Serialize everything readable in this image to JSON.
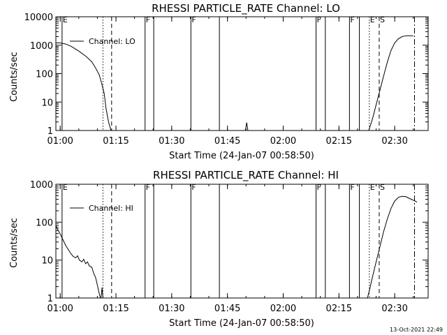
{
  "chart_data": [
    {
      "type": "line",
      "title": "RHESSI PARTICLE_RATE Channel: LO",
      "xlabel": "Start Time (24-Jan-07 00:58:50)",
      "ylabel": "Counts/sec",
      "y_scale": "log",
      "xlim": [
        "00:58:50",
        "02:39:00"
      ],
      "ylim": [
        1,
        10000
      ],
      "x_ticks": [
        "01:00",
        "01:15",
        "01:30",
        "01:45",
        "02:00",
        "02:15",
        "02:30"
      ],
      "y_ticks": [
        "1",
        "10",
        "100",
        "1000",
        "10000"
      ],
      "legend": {
        "entry": "Channel: LO",
        "placement": "top-left"
      },
      "markers": [
        {
          "label": "E",
          "time": "01:00:30",
          "style": "solid"
        },
        {
          "label": "",
          "time": "01:11:30",
          "style": "dotted"
        },
        {
          "label": "",
          "time": "01:13:50",
          "style": "dashed"
        },
        {
          "label": "F",
          "time": "01:22:50",
          "style": "solid"
        },
        {
          "label": "",
          "time": "01:25:10",
          "style": "solid"
        },
        {
          "label": "F",
          "time": "01:35:10",
          "style": "solid"
        },
        {
          "label": "",
          "time": "01:42:50",
          "style": "solid"
        },
        {
          "label": "F",
          "time": "02:08:50",
          "style": "solid"
        },
        {
          "label": "",
          "time": "02:11:20",
          "style": "solid"
        },
        {
          "label": "F",
          "time": "02:17:50",
          "style": "solid"
        },
        {
          "label": "",
          "time": "02:20:30",
          "style": "solid"
        },
        {
          "label": "E",
          "time": "02:23:10",
          "style": "dotted"
        },
        {
          "label": "S",
          "time": "02:25:50",
          "style": "dashed"
        },
        {
          "label": "",
          "time": "02:35:20",
          "style": "dashdot"
        }
      ],
      "series": [
        {
          "segments": [
            [
              [
                "00:58:50",
                1200
              ],
              [
                "01:00:00",
                1200
              ],
              [
                "01:01:30",
                1100
              ],
              [
                "01:03:00",
                900
              ],
              [
                "01:05:00",
                620
              ],
              [
                "01:07:00",
                400
              ],
              [
                "01:08:30",
                260
              ],
              [
                "01:09:30",
                160
              ],
              [
                "01:10:30",
                90
              ],
              [
                "01:11:10",
                45
              ],
              [
                "01:11:50",
                20
              ],
              [
                "01:12:20",
                6
              ],
              [
                "01:13:00",
                2
              ],
              [
                "01:13:40",
                1
              ]
            ],
            [
              [
                "01:49:50",
                1
              ],
              [
                "01:50:10",
                1.9
              ],
              [
                "01:50:30",
                1
              ]
            ],
            [
              [
                "02:23:00",
                1
              ],
              [
                "02:24:00",
                2.5
              ],
              [
                "02:25:00",
                8
              ],
              [
                "02:26:00",
                25
              ],
              [
                "02:27:00",
                80
              ],
              [
                "02:28:00",
                250
              ],
              [
                "02:29:00",
                650
              ],
              [
                "02:30:00",
                1200
              ],
              [
                "02:31:00",
                1700
              ],
              [
                "02:32:00",
                2000
              ],
              [
                "02:33:00",
                2150
              ],
              [
                "02:35:00",
                2150
              ]
            ]
          ]
        }
      ]
    },
    {
      "type": "line",
      "title": "RHESSI PARTICLE_RATE Channel: HI",
      "xlabel": "Start Time (24-Jan-07 00:58:50)",
      "ylabel": "Counts/sec",
      "y_scale": "log",
      "xlim": [
        "00:58:50",
        "02:39:00"
      ],
      "ylim": [
        1,
        1000
      ],
      "x_ticks": [
        "01:00",
        "01:15",
        "01:30",
        "01:45",
        "02:00",
        "02:15",
        "02:30"
      ],
      "y_ticks": [
        "1",
        "10",
        "100",
        "1000"
      ],
      "legend": {
        "entry": "Channel: HI",
        "placement": "top-left"
      },
      "markers": [
        {
          "label": "E",
          "time": "01:00:30",
          "style": "solid"
        },
        {
          "label": "",
          "time": "01:11:30",
          "style": "dotted"
        },
        {
          "label": "",
          "time": "01:13:50",
          "style": "dashed"
        },
        {
          "label": "F",
          "time": "01:22:50",
          "style": "solid"
        },
        {
          "label": "",
          "time": "01:25:10",
          "style": "solid"
        },
        {
          "label": "F",
          "time": "01:35:10",
          "style": "solid"
        },
        {
          "label": "",
          "time": "01:42:50",
          "style": "solid"
        },
        {
          "label": "F",
          "time": "02:08:50",
          "style": "solid"
        },
        {
          "label": "",
          "time": "02:11:20",
          "style": "solid"
        },
        {
          "label": "F",
          "time": "02:17:50",
          "style": "solid"
        },
        {
          "label": "",
          "time": "02:20:30",
          "style": "solid"
        },
        {
          "label": "E",
          "time": "02:23:10",
          "style": "dotted"
        },
        {
          "label": "S",
          "time": "02:25:50",
          "style": "dashed"
        },
        {
          "label": "",
          "time": "02:35:20",
          "style": "dashdot"
        }
      ],
      "series": [
        {
          "segments": [
            [
              [
                "00:58:50",
                80
              ],
              [
                "00:59:30",
                60
              ],
              [
                "01:00:10",
                45
              ],
              [
                "01:00:50",
                33
              ],
              [
                "01:01:30",
                24
              ],
              [
                "01:02:10",
                19
              ],
              [
                "01:02:50",
                15
              ],
              [
                "01:03:30",
                12.5
              ],
              [
                "01:04:10",
                11.5
              ],
              [
                "01:04:40",
                13
              ],
              [
                "01:05:10",
                10
              ],
              [
                "01:05:50",
                9
              ],
              [
                "01:06:20",
                10.5
              ],
              [
                "01:06:50",
                8
              ],
              [
                "01:07:20",
                9
              ],
              [
                "01:07:50",
                7
              ],
              [
                "01:08:30",
                6.5
              ],
              [
                "01:09:00",
                4.5
              ],
              [
                "01:09:30",
                3.5
              ],
              [
                "01:10:00",
                2.2
              ],
              [
                "01:10:30",
                1.3
              ],
              [
                "01:10:50",
                1
              ]
            ],
            [
              [
                "01:11:00",
                1
              ],
              [
                "01:11:15",
                1.9
              ],
              [
                "01:11:30",
                1
              ]
            ],
            [
              [
                "02:22:40",
                1
              ],
              [
                "02:23:20",
                1.8
              ],
              [
                "02:24:00",
                3.5
              ],
              [
                "02:25:00",
                9
              ],
              [
                "02:26:00",
                22
              ],
              [
                "02:27:00",
                55
              ],
              [
                "02:28:00",
                120
              ],
              [
                "02:29:00",
                230
              ],
              [
                "02:30:00",
                360
              ],
              [
                "02:31:00",
                450
              ],
              [
                "02:32:00",
                480
              ],
              [
                "02:33:00",
                470
              ],
              [
                "02:34:00",
                420
              ],
              [
                "02:35:00",
                380
              ],
              [
                "02:36:00",
                340
              ]
            ]
          ]
        }
      ]
    }
  ],
  "footer": {
    "timestamp": "13-Oct-2021 22:49"
  }
}
